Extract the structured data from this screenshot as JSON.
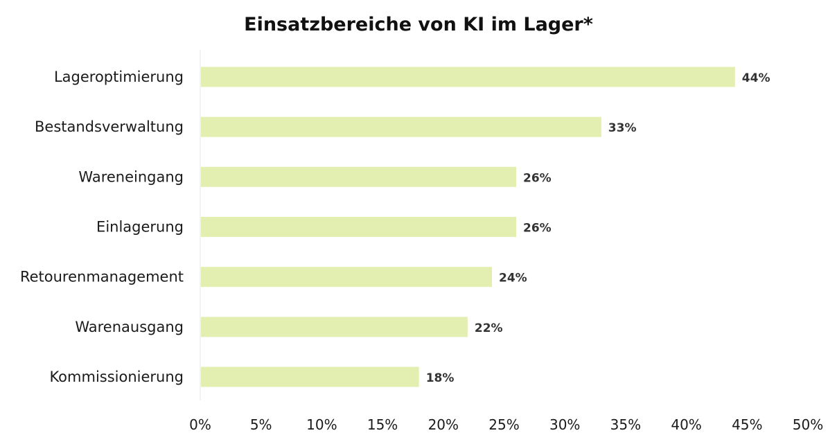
{
  "chart_data": {
    "type": "bar",
    "orientation": "horizontal",
    "title": "Einsatzbereiche von KI im Lager*",
    "xlabel": "",
    "ylabel": "",
    "categories": [
      "Lageroptimierung",
      "Bestandsverwaltung",
      "Wareneingang",
      "Einlagerung",
      "Retourenmanagement",
      "Warenausgang",
      "Kommissionierung"
    ],
    "values": [
      44,
      33,
      26,
      26,
      24,
      22,
      18
    ],
    "value_labels": [
      "44%",
      "33%",
      "26%",
      "26%",
      "24%",
      "22%",
      "18%"
    ],
    "xlim": [
      0,
      50
    ],
    "x_ticks": [
      0,
      5,
      10,
      15,
      20,
      25,
      30,
      35,
      40,
      45,
      50
    ],
    "x_tick_labels": [
      "0%",
      "5%",
      "10%",
      "15%",
      "20%",
      "25%",
      "30%",
      "35%",
      "40%",
      "45%",
      "50%"
    ],
    "grid": false,
    "legend": "none",
    "bar_color": "#e3efb1",
    "axis_color": "#e6e6e6"
  }
}
